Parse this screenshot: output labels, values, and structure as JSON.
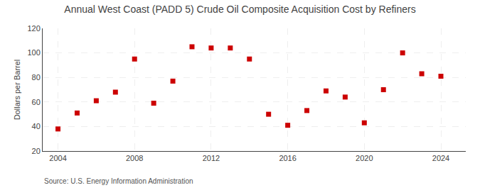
{
  "chart_data": {
    "type": "scatter",
    "title": "Annual West Coast (PADD 5) Crude Oil Composite Acquisition Cost by Refiners",
    "ylabel": "Dollars per Barrel",
    "source": "Source: U.S. Energy Information Administration",
    "x": [
      2004,
      2005,
      2006,
      2007,
      2008,
      2009,
      2010,
      2011,
      2012,
      2013,
      2014,
      2015,
      2016,
      2017,
      2018,
      2019,
      2020,
      2021,
      2022,
      2023,
      2024
    ],
    "values": [
      38,
      51,
      61,
      68,
      95,
      59,
      77,
      105,
      104,
      104,
      95,
      50,
      41,
      53,
      69,
      64,
      43,
      70,
      100,
      83,
      81
    ],
    "color": "#cc0000",
    "marker": "square",
    "xlim": [
      2003.2,
      2025.3
    ],
    "xticks": [
      2004,
      2008,
      2012,
      2016,
      2020,
      2024
    ],
    "ylim": [
      20,
      120
    ],
    "yticks": [
      20,
      40,
      60,
      80,
      100,
      120
    ],
    "grid": true
  }
}
